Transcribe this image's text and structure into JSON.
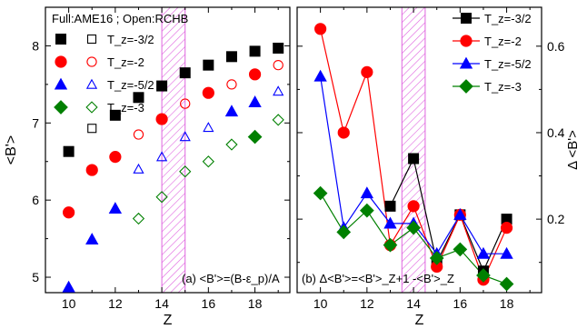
{
  "chart_data": [
    {
      "type": "scatter",
      "panel_note": "Full:AME16 ; Open:RCHB",
      "annotation": "(a) <B'>=(B-ε_p)/A",
      "xlabel": "Z",
      "ylabel": "<B'>",
      "xlim": [
        9,
        19.5
      ],
      "ylim": [
        4.8,
        8.5
      ],
      "xticks": [
        "10",
        "12",
        "14",
        "16",
        "18"
      ],
      "yticks": [
        "5",
        "6",
        "7",
        "8"
      ],
      "legend_position": "top-left",
      "shaded_band": [
        14,
        15
      ],
      "series": [
        {
          "name": "T_z=-3/2",
          "marker": "square",
          "color": "#000000",
          "full": {
            "x": [
              10,
              12,
              13,
              14,
              15,
              16,
              17,
              18,
              19
            ],
            "y": [
              6.63,
              7.1,
              7.33,
              7.48,
              7.65,
              7.75,
              7.86,
              7.93,
              7.97
            ]
          },
          "open": {
            "x": [
              11,
              13,
              14,
              15
            ],
            "y": [
              6.93,
              7.33,
              7.48,
              7.65
            ]
          }
        },
        {
          "name": "T_z=-2",
          "marker": "circle",
          "color": "#ff0000",
          "full": {
            "x": [
              10,
              11,
              12,
              14,
              16,
              18
            ],
            "y": [
              5.84,
              6.39,
              6.56,
              7.05,
              7.39,
              7.63
            ]
          },
          "open": {
            "x": [
              13,
              15,
              17,
              19
            ],
            "y": [
              6.85,
              7.25,
              7.5,
              7.75
            ]
          }
        },
        {
          "name": "T_z=-5/2",
          "marker": "triangle",
          "color": "#0000ff",
          "full": {
            "x": [
              10,
              11,
              12,
              17,
              18
            ],
            "y": [
              4.87,
              5.49,
              5.89,
              7.15,
              7.27
            ]
          },
          "open": {
            "x": [
              13,
              14,
              15,
              16,
              17,
              19
            ],
            "y": [
              6.4,
              6.56,
              6.82,
              6.94,
              7.15,
              7.41
            ]
          }
        },
        {
          "name": "T_z=-3",
          "marker": "diamond",
          "color": "#008000",
          "full": {
            "x": [
              18
            ],
            "y": [
              6.82
            ]
          },
          "open": {
            "x": [
              13,
              14,
              15,
              16,
              17,
              19
            ],
            "y": [
              5.76,
              6.04,
              6.37,
              6.5,
              6.72,
              7.04
            ]
          }
        }
      ]
    },
    {
      "type": "line",
      "annotation": "(b) Δ<B'>=<B'>_Z+1 -<B'>_Z",
      "xlabel": "Z",
      "ylabel": "Δ <B'>",
      "xlim": [
        9,
        19.5
      ],
      "ylim": [
        0.03,
        0.69
      ],
      "xticks": [
        "10",
        "12",
        "14",
        "16",
        "18"
      ],
      "yticks": [
        "0.2",
        "0.4",
        "0.6"
      ],
      "legend_position": "top-right",
      "shaded_band": [
        13.5,
        14.5
      ],
      "series": [
        {
          "name": "T_z=-3/2",
          "marker": "square",
          "color": "#000000",
          "x": [
            13,
            14,
            15,
            16,
            17,
            18
          ],
          "y": [
            0.23,
            0.34,
            0.1,
            0.21,
            0.08,
            0.2
          ]
        },
        {
          "name": "T_z=-2",
          "marker": "circle",
          "color": "#ff0000",
          "x": [
            10,
            11,
            12,
            13,
            14,
            15,
            16,
            17,
            18
          ],
          "y": [
            0.64,
            0.4,
            0.54,
            0.14,
            0.23,
            0.09,
            0.21,
            0.06,
            0.18
          ]
        },
        {
          "name": "T_z=-5/2",
          "marker": "triangle",
          "color": "#0000ff",
          "x": [
            10,
            11,
            12,
            13,
            14,
            15,
            16,
            17,
            18
          ],
          "y": [
            0.53,
            0.18,
            0.26,
            0.19,
            0.19,
            0.12,
            0.21,
            0.12,
            0.12
          ]
        },
        {
          "name": "T_z=-3",
          "marker": "diamond",
          "color": "#008000",
          "x": [
            10,
            11,
            12,
            13,
            14,
            15,
            16,
            17,
            18
          ],
          "y": [
            0.26,
            0.17,
            0.22,
            0.14,
            0.18,
            0.11,
            0.13,
            0.07,
            0.05
          ]
        }
      ]
    }
  ]
}
